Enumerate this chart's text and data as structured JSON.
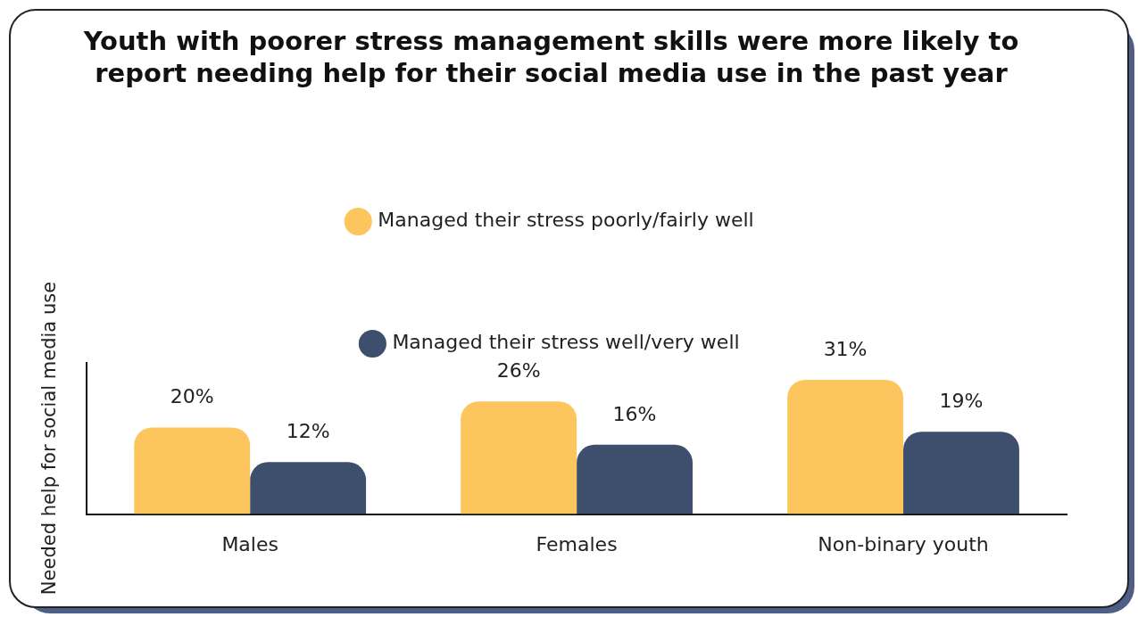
{
  "chart_data": {
    "type": "bar",
    "title": "Youth with poorer stress management skills were more likely to report needing help for their social media use in the past year",
    "ylabel": "Needed help for social media use",
    "categories": [
      "Males",
      "Females",
      "Non-binary youth"
    ],
    "series": [
      {
        "name": "Managed their stress poorly/fairly well",
        "color": "#fdc55e",
        "values": [
          20,
          26,
          31
        ],
        "value_labels": [
          "20%",
          "26%",
          "31%"
        ]
      },
      {
        "name": "Managed their stress well/very well",
        "color": "#3d4f6d",
        "values": [
          12,
          16,
          19
        ],
        "value_labels": [
          "12%",
          "16%",
          "19%"
        ]
      }
    ],
    "legend": "top",
    "grid": false
  }
}
